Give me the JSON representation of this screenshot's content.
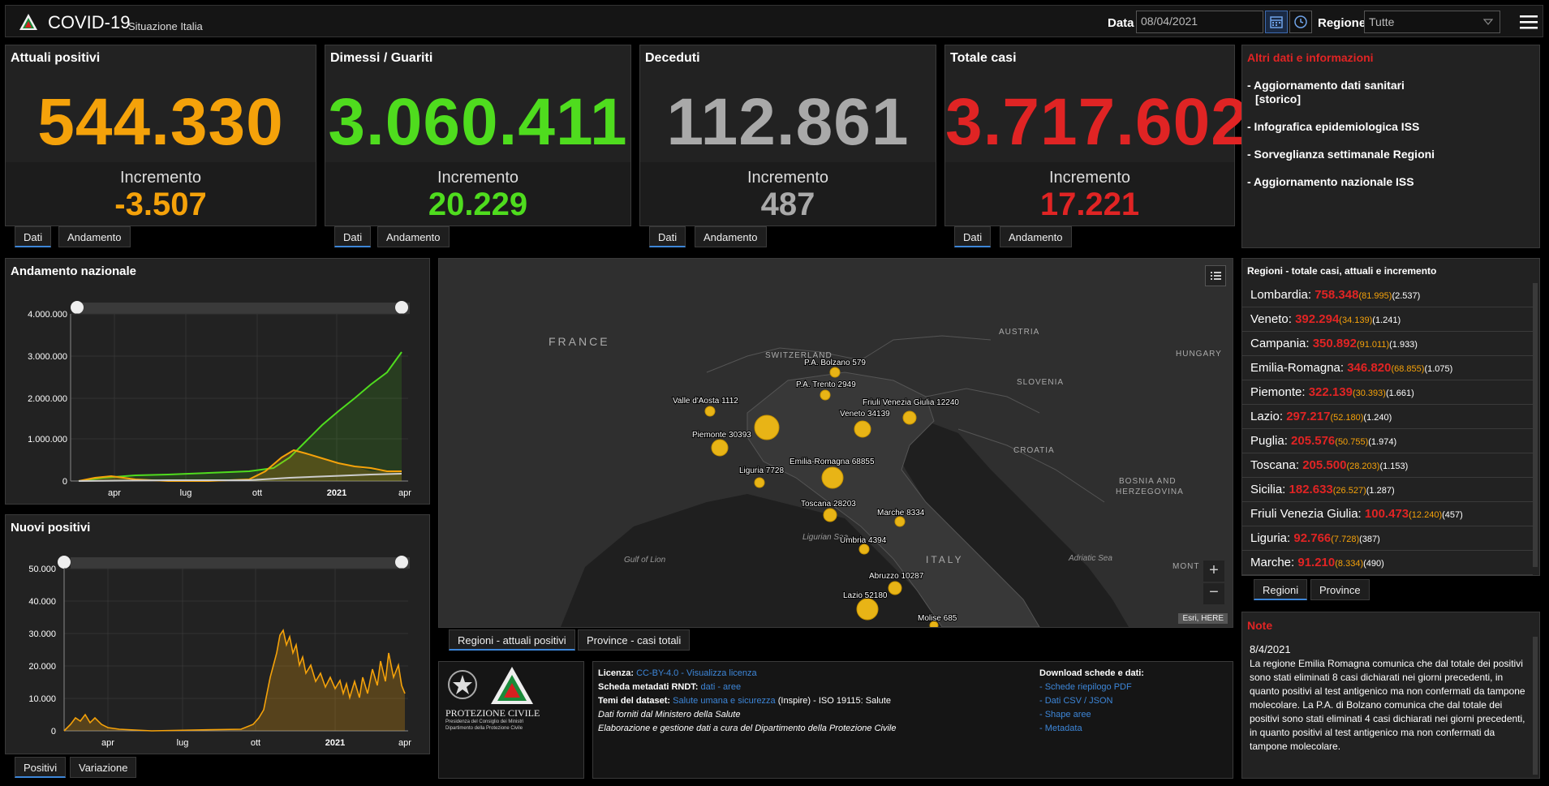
{
  "header": {
    "title": "COVID-19",
    "subtitle": "Situazione Italia",
    "date_label": "Data",
    "date_value": "08/04/2021",
    "region_label": "Regione",
    "region_value": "Tutte"
  },
  "stats": [
    {
      "title": "Attuali positivi",
      "value": "544.330",
      "inc_label": "Incremento",
      "inc_value": "-3.507",
      "color": "#f5a20a",
      "tabs": [
        "Dati",
        "Andamento"
      ]
    },
    {
      "title": "Dimessi / Guariti",
      "value": "3.060.411",
      "inc_label": "Incremento",
      "inc_value": "20.229",
      "color": "#4fdc1e",
      "tabs": [
        "Dati",
        "Andamento"
      ]
    },
    {
      "title": "Deceduti",
      "value": "112.861",
      "inc_label": "Incremento",
      "inc_value": "487",
      "color": "#a9a9a9",
      "tabs": [
        "Dati",
        "Andamento"
      ]
    },
    {
      "title": "Totale casi",
      "value": "3.717.602",
      "inc_label": "Incremento",
      "inc_value": "17.221",
      "color": "#e02424",
      "tabs": [
        "Dati",
        "Andamento"
      ]
    }
  ],
  "info": {
    "title": "Altri dati e informazioni",
    "links": [
      "- Aggiornamento dati sanitari",
      "[storico]",
      "- Infografica epidemiologica ISS",
      "- Sorveglianza settimanale Regioni",
      "- Aggiornamento nazionale ISS"
    ]
  },
  "regions": {
    "title": "Regioni - totale casi, attuali e incremento",
    "rows": [
      {
        "name": "Lombardia:",
        "total": "758.348",
        "pos": "(81.995)",
        "inc": "(2.537)"
      },
      {
        "name": "Veneto:",
        "total": "392.294",
        "pos": "(34.139)",
        "inc": "(1.241)"
      },
      {
        "name": "Campania:",
        "total": "350.892",
        "pos": "(91.011)",
        "inc": "(1.933)"
      },
      {
        "name": "Emilia-Romagna:",
        "total": "346.820",
        "pos": "(68.855)",
        "inc": "(1.075)"
      },
      {
        "name": "Piemonte:",
        "total": "322.139",
        "pos": "(30.393)",
        "inc": "(1.661)"
      },
      {
        "name": "Lazio:",
        "total": "297.217",
        "pos": "(52.180)",
        "inc": "(1.240)"
      },
      {
        "name": "Puglia:",
        "total": "205.576",
        "pos": "(50.755)",
        "inc": "(1.974)"
      },
      {
        "name": "Toscana:",
        "total": "205.500",
        "pos": "(28.203)",
        "inc": "(1.153)"
      },
      {
        "name": "Sicilia:",
        "total": "182.633",
        "pos": "(26.527)",
        "inc": "(1.287)"
      },
      {
        "name": "Friuli Venezia Giulia:",
        "total": "100.473",
        "pos": "(12.240)",
        "inc": "(457)"
      },
      {
        "name": "Liguria:",
        "total": "92.766",
        "pos": "(7.728)",
        "inc": "(387)"
      },
      {
        "name": "Marche:",
        "total": "91.210",
        "pos": "(8.334)",
        "inc": "(490)"
      }
    ],
    "tabs": [
      "Regioni",
      "Province"
    ]
  },
  "national_chart": {
    "title": "Andamento nazionale",
    "y_ticks": [
      "4.000.000",
      "3.000.000",
      "2.000.000",
      "1.000.000",
      "0"
    ],
    "x_ticks": [
      "apr",
      "lug",
      "ott",
      "2021",
      "apr"
    ]
  },
  "new_cases_chart": {
    "title": "Nuovi positivi",
    "y_ticks": [
      "50.000",
      "40.000",
      "30.000",
      "20.000",
      "10.000",
      "0"
    ],
    "x_ticks": [
      "apr",
      "lug",
      "ott",
      "2021",
      "apr"
    ],
    "tabs": [
      "Positivi",
      "Variazione"
    ]
  },
  "map": {
    "countries": [
      "FRANCE",
      "SWITZERLAND",
      "AUSTRIA",
      "HUNGARY",
      "SLOVENIA",
      "CROATIA",
      "BOSNIA AND",
      "HERZEGOVINA",
      "ITALY",
      "MONT"
    ],
    "seas": [
      "Gulf of Lion",
      "Ligurian Sea",
      "Adriatic Sea"
    ],
    "labels": [
      "P.A. Bolzano 579",
      "P.A. Trento 2949",
      "Valle d'Aosta 1112",
      "Friuli Venezia Giulia 12240",
      "Veneto 34139",
      "Piemonte 30393",
      "Emilia-Romagna 68855",
      "Liguria 7728",
      "Toscana 28203",
      "Marche 8334",
      "Umbria 4394",
      "Abruzzo 10287",
      "Lazio 52180",
      "Molise 685"
    ],
    "attribution": "Esri, HERE",
    "tabs": [
      "Regioni - attuali positivi",
      "Province - casi totali"
    ]
  },
  "footer": {
    "org_name": "PROTEZIONE CIVILE",
    "org_sub1": "Presidenza del Consiglio dei Ministri",
    "org_sub2": "Dipartimento della Protezione Civile",
    "licenza_label": "Licenza:",
    "licenza_link": "CC-BY-4.0 - Visualizza licenza",
    "scheda_label": "Scheda metadati RNDT:",
    "scheda_links": "dati - aree",
    "temi_label": "Temi del dataset:",
    "temi_link": "Salute umana e sicurezza",
    "temi_rest": "(Inspire) - ISO 19115: Salute",
    "line4": "Dati forniti dal Ministero della Salute",
    "line5": "Elaborazione e gestione dati a cura del Dipartimento della Protezione Civile",
    "download_title": "Download schede e dati:",
    "downloads": [
      "- Schede riepilogo PDF",
      "- Dati CSV / JSON",
      "- Shape aree",
      "- Metadata"
    ]
  },
  "notes": {
    "title": "Note",
    "date": "8/4/2021",
    "text": "La regione Emilia Romagna comunica che dal totale dei positivi sono stati eliminati 8 casi dichiarati nei giorni precedenti, in quanto positivi al test antigenico ma non confermati da tampone molecolare. La P.A. di Bolzano comunica che dal totale dei positivi sono stati eliminati 4 casi dichiarati nei giorni precedenti, in quanto positivi al test antigenico ma non confermati da tampone molecolare."
  },
  "colors": {
    "positivi": "#f5a20a",
    "guariti": "#4fdc1e",
    "deceduti": "#a9a9a9",
    "totale": "#e02424",
    "accent": "#3d86d8"
  }
}
